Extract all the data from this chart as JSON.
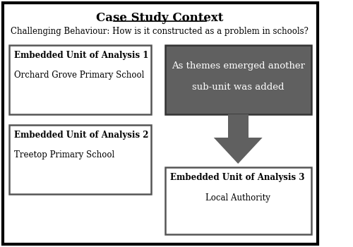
{
  "title": "Case Study Context",
  "subtitle": "Challenging Behaviour: How is it constructed as a problem in schools?",
  "box1_bold": "Embedded Unit of Analysis 1",
  "box1_sub": "Orchard Grove Primary School",
  "box2_bold": "Embedded Unit of Analysis 2",
  "box2_sub": "Treetop Primary School",
  "gray_box_line1": "As themes emerged another",
  "gray_box_line2": "sub-unit was added",
  "box3_bold": "Embedded Unit of Analysis 3",
  "box3_sub": "Local Authority",
  "outer_bg": "#ffffff",
  "outer_border": "#000000",
  "box_bg": "#ffffff",
  "box_border": "#555555",
  "gray_box_bg": "#606060",
  "gray_box_fg": "#ffffff",
  "arrow_color": "#606060"
}
